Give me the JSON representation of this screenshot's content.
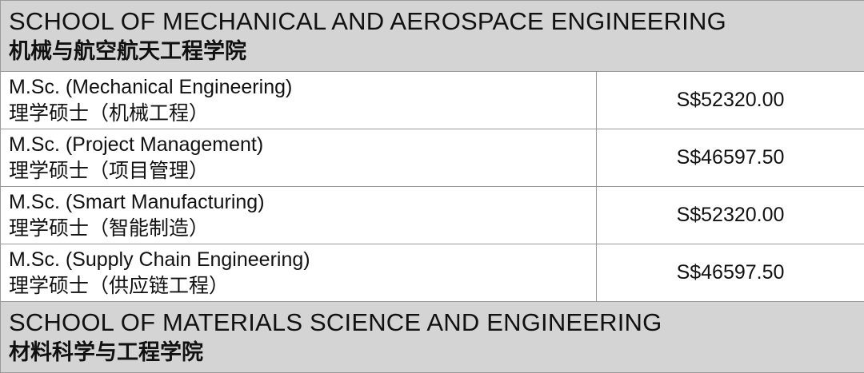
{
  "sections": [
    {
      "school_en": "SCHOOL OF MECHANICAL AND AEROSPACE ENGINEERING",
      "school_zh": "机械与航空航天工程学院",
      "programs": [
        {
          "name_en": "M.Sc. (Mechanical Engineering)",
          "name_zh": "理学硕士（机械工程）",
          "fee": "S$52320.00"
        },
        {
          "name_en": "M.Sc. (Project Management)",
          "name_zh": "理学硕士（项目管理）",
          "fee": "S$46597.50"
        },
        {
          "name_en": "M.Sc. (Smart Manufacturing)",
          "name_zh": "理学硕士（智能制造）",
          "fee": "S$52320.00"
        },
        {
          "name_en": "M.Sc. (Supply Chain Engineering)",
          "name_zh": "理学硕士（供应链工程）",
          "fee": "S$46597.50"
        }
      ]
    },
    {
      "school_en": "SCHOOL OF MATERIALS SCIENCE AND ENGINEERING",
      "school_zh": "材料科学与工程学院",
      "programs": []
    }
  ],
  "colors": {
    "header_bg": "#d4d4d4",
    "border": "#9a9a9a",
    "text": "#111111"
  }
}
